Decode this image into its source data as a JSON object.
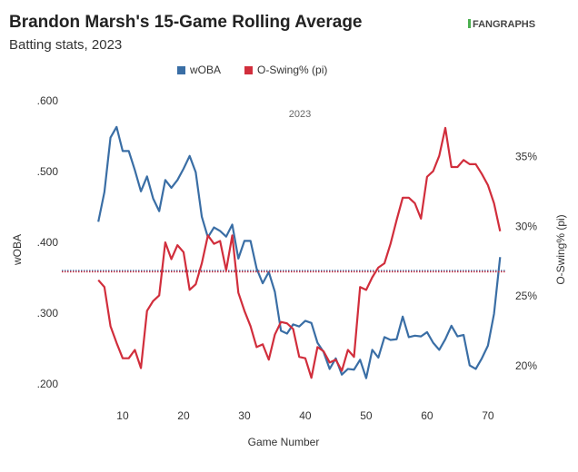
{
  "chart_data": {
    "type": "line",
    "title": "Brandon Marsh's 15-Game Rolling Average",
    "subtitle": "Batting stats, 2023",
    "source_logo": "FANGRAPHS",
    "annotation": "2023",
    "x_label": "Game Number",
    "y_label": "wOBA",
    "y2_label": "O-Swing% (pi)",
    "x": [
      6,
      7,
      8,
      9,
      10,
      11,
      12,
      13,
      14,
      15,
      16,
      17,
      18,
      19,
      20,
      21,
      22,
      23,
      24,
      25,
      26,
      27,
      28,
      29,
      30,
      31,
      32,
      33,
      34,
      35,
      36,
      37,
      38,
      39,
      40,
      41,
      42,
      43,
      44,
      45,
      46,
      47,
      48,
      49,
      50,
      51,
      52,
      53,
      54,
      55,
      56,
      57,
      58,
      59,
      60,
      61,
      62,
      63,
      64,
      65,
      66,
      67,
      68,
      69,
      70,
      71,
      72
    ],
    "series": [
      {
        "name": "wOBA",
        "color": "#3a6ea5",
        "reference": 0.361,
        "values": [
          0.43,
          0.472,
          0.549,
          0.564,
          0.53,
          0.53,
          0.503,
          0.473,
          0.494,
          0.463,
          0.445,
          0.489,
          0.478,
          0.489,
          0.505,
          0.523,
          0.5,
          0.437,
          0.408,
          0.422,
          0.417,
          0.409,
          0.426,
          0.378,
          0.403,
          0.403,
          0.364,
          0.343,
          0.359,
          0.331,
          0.276,
          0.272,
          0.285,
          0.282,
          0.29,
          0.287,
          0.259,
          0.246,
          0.222,
          0.237,
          0.214,
          0.222,
          0.221,
          0.235,
          0.209,
          0.249,
          0.238,
          0.267,
          0.263,
          0.264,
          0.296,
          0.267,
          0.269,
          0.268,
          0.274,
          0.259,
          0.249,
          0.264,
          0.283,
          0.268,
          0.27,
          0.227,
          0.222,
          0.237,
          0.255,
          0.3,
          0.38
        ]
      },
      {
        "name": "O-Swing% (pi)",
        "color": "#d12e3c",
        "axis": "y2",
        "reference": 26.8,
        "values": [
          26.2,
          25.7,
          22.9,
          21.7,
          20.6,
          20.6,
          21.2,
          19.9,
          24.0,
          24.7,
          25.1,
          28.9,
          27.7,
          28.7,
          28.2,
          25.5,
          25.9,
          27.4,
          29.4,
          28.8,
          29.0,
          26.9,
          29.4,
          25.3,
          24.0,
          22.9,
          21.4,
          21.6,
          20.5,
          22.3,
          23.2,
          23.1,
          22.7,
          20.7,
          20.6,
          19.2,
          21.4,
          21.1,
          20.3,
          20.5,
          19.7,
          21.2,
          20.7,
          25.7,
          25.5,
          26.4,
          27.1,
          27.4,
          28.8,
          30.5,
          32.1,
          32.1,
          31.7,
          30.6,
          33.6,
          34.0,
          35.1,
          37.1,
          34.3,
          34.3,
          34.8,
          34.5,
          34.5,
          33.8,
          33.0,
          31.7,
          29.7
        ]
      }
    ],
    "xlim": [
      0,
      73
    ],
    "xticks": [
      10,
      20,
      30,
      40,
      50,
      60,
      70
    ],
    "ylim": [
      0.17,
      0.61
    ],
    "yticks": [
      {
        "value": 0.2,
        "label": ".200"
      },
      {
        "value": 0.3,
        "label": ".300"
      },
      {
        "value": 0.4,
        "label": ".400"
      },
      {
        "value": 0.5,
        "label": ".500"
      },
      {
        "value": 0.6,
        "label": ".600"
      }
    ],
    "y2lim": [
      17.2,
      39.5
    ],
    "y2ticks": [
      {
        "value": 20,
        "label": "20%"
      },
      {
        "value": 25,
        "label": "25%"
      },
      {
        "value": 30,
        "label": "30%"
      },
      {
        "value": 35,
        "label": "35%"
      }
    ]
  }
}
